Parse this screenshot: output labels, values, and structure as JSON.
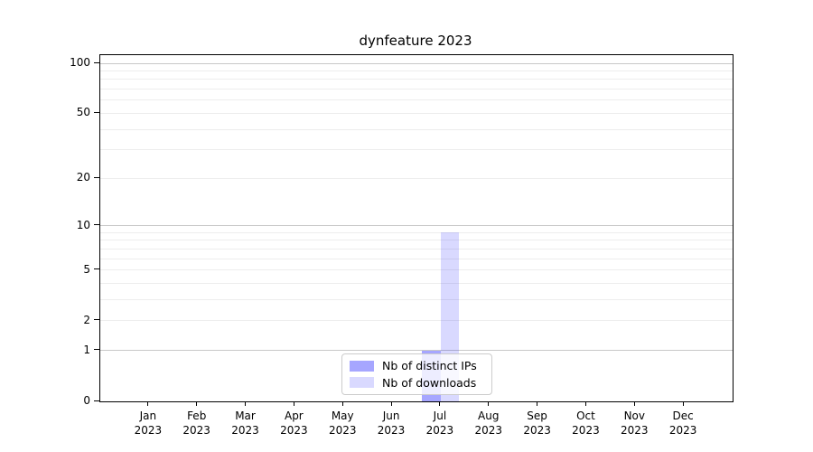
{
  "chart_data": {
    "type": "bar",
    "title": "dynfeature 2023",
    "categories": [
      "Jan",
      "Feb",
      "Mar",
      "Apr",
      "May",
      "Jun",
      "Jul",
      "Aug",
      "Sep",
      "Oct",
      "Nov",
      "Dec"
    ],
    "year_label": "2023",
    "series": [
      {
        "name": "Nb of distinct IPs",
        "values": [
          0,
          0,
          0,
          0,
          0,
          0,
          1,
          0,
          0,
          0,
          0,
          0
        ],
        "color": "rgba(0,0,255,0.35)"
      },
      {
        "name": "Nb of downloads",
        "values": [
          0,
          0,
          0,
          0,
          0,
          0,
          9,
          0,
          0,
          0,
          0,
          0
        ],
        "color": "rgba(0,0,255,0.15)"
      }
    ],
    "yscale": "log1p",
    "ylim": [
      0,
      112
    ],
    "yticks": [
      0,
      1,
      2,
      5,
      10,
      20,
      50,
      100
    ],
    "grid": {
      "major_values": [
        1,
        10,
        100
      ],
      "minor_values": [
        2,
        3,
        4,
        5,
        6,
        7,
        8,
        9,
        20,
        30,
        40,
        50,
        60,
        70,
        80,
        90
      ],
      "major_color": "#c8c8c8",
      "minor_color": "#ededed"
    },
    "legend_position": "lower center",
    "xlabel": "",
    "ylabel": ""
  }
}
